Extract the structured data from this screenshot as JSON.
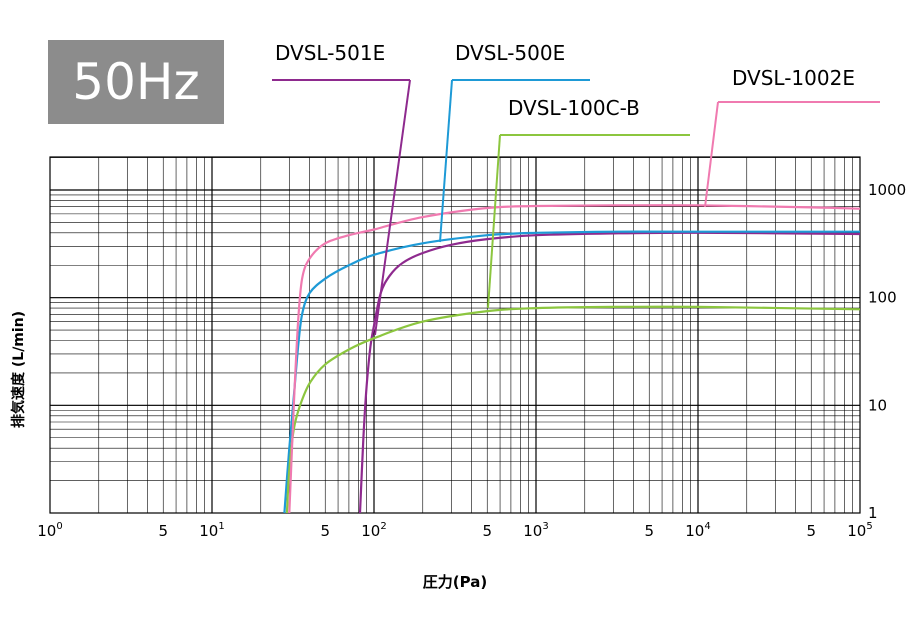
{
  "badge": {
    "label": "50Hz"
  },
  "chart_data": {
    "type": "line",
    "title": "",
    "xlabel": "圧力(Pa)",
    "ylabel": "排気速度 (L/min)",
    "x_scale": "log",
    "y_scale": "log",
    "xlim": [
      1,
      100000
    ],
    "ylim": [
      1,
      2000
    ],
    "grid": true,
    "x_tick_labels": [
      {
        "value": 1,
        "base": "10",
        "exp": "0"
      },
      {
        "value": 5,
        "base": "5",
        "exp": ""
      },
      {
        "value": 10,
        "base": "10",
        "exp": "1"
      },
      {
        "value": 50,
        "base": "5",
        "exp": ""
      },
      {
        "value": 100,
        "base": "10",
        "exp": "2"
      },
      {
        "value": 500,
        "base": "5",
        "exp": ""
      },
      {
        "value": 1000,
        "base": "10",
        "exp": "3"
      },
      {
        "value": 5000,
        "base": "5",
        "exp": ""
      },
      {
        "value": 10000,
        "base": "10",
        "exp": "4"
      },
      {
        "value": 50000,
        "base": "5",
        "exp": ""
      },
      {
        "value": 100000,
        "base": "10",
        "exp": "5"
      }
    ],
    "y_tick_labels": [
      {
        "value": 1,
        "label": "1"
      },
      {
        "value": 10,
        "label": "10"
      },
      {
        "value": 100,
        "label": "100"
      },
      {
        "value": 1000,
        "label": "1000"
      }
    ],
    "series": [
      {
        "name": "DVSL-501E",
        "color": "#8e2a8e",
        "x": [
          82,
          86,
          90,
          95,
          100,
          110,
          125,
          150,
          200,
          300,
          500,
          1000,
          3000,
          10000,
          100000
        ],
        "y": [
          1,
          5,
          15,
          35,
          55,
          110,
          160,
          210,
          260,
          310,
          350,
          380,
          395,
          400,
          390
        ]
      },
      {
        "name": "DVSL-500E",
        "color": "#1e9ad6",
        "x": [
          28,
          30,
          32,
          34,
          36,
          40,
          50,
          70,
          100,
          200,
          500,
          1000,
          3000,
          10000,
          100000
        ],
        "y": [
          1,
          4,
          12,
          35,
          70,
          110,
          150,
          200,
          250,
          320,
          380,
          400,
          410,
          410,
          410
        ]
      },
      {
        "name": "DVSL-100C-B",
        "color": "#8cc63f",
        "x": [
          29,
          30,
          32,
          35,
          40,
          50,
          70,
          100,
          200,
          500,
          1000,
          3000,
          10000,
          100000
        ],
        "y": [
          1,
          2.5,
          6,
          10,
          16,
          24,
          33,
          42,
          60,
          75,
          80,
          82,
          82,
          78
        ]
      },
      {
        "name": "DVSL-1002E",
        "color": "#f07ab0",
        "x": [
          30,
          32,
          34,
          36,
          40,
          50,
          70,
          100,
          200,
          500,
          1000,
          3000,
          10000,
          50000,
          100000
        ],
        "y": [
          1,
          10,
          60,
          150,
          230,
          320,
          380,
          430,
          560,
          680,
          710,
          720,
          720,
          690,
          670
        ]
      }
    ],
    "legend_callouts": [
      {
        "series": "DVSL-501E"
      },
      {
        "series": "DVSL-500E"
      },
      {
        "series": "DVSL-100C-B"
      },
      {
        "series": "DVSL-1002E"
      }
    ]
  }
}
